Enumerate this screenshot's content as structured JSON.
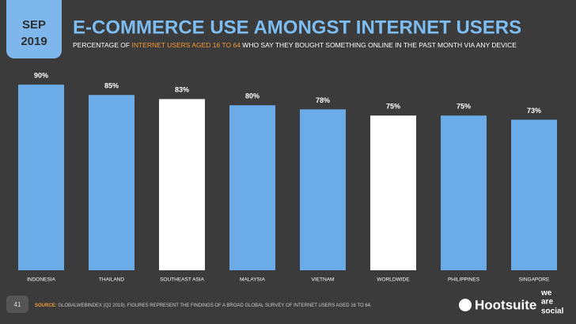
{
  "badge": {
    "month": "SEP",
    "year": "2019"
  },
  "chart_data": {
    "type": "bar",
    "title": "E-COMMERCE USE AMONGST INTERNET USERS",
    "subtitle": [
      "PERCENTAGE OF ",
      "INTERNET USERS AGED 16 TO 64",
      " WHO SAY THEY BOUGHT SOMETHING ONLINE IN THE PAST MONTH VIA ANY DEVICE"
    ],
    "categories": [
      "INDONESIA",
      "THAILAND",
      "SOUTHEAST ASIA",
      "MALAYSIA",
      "VIETNAM",
      "WORLDWIDE",
      "PHILIPPINES",
      "SINGAPORE"
    ],
    "values": [
      90,
      85,
      83,
      80,
      78,
      75,
      75,
      73
    ],
    "value_labels": [
      "90%",
      "85%",
      "83%",
      "80%",
      "78%",
      "75%",
      "75%",
      "73%"
    ],
    "colors": [
      "#6aabe8",
      "#6aabe8",
      "#ffffff",
      "#6aabe8",
      "#6aabe8",
      "#ffffff",
      "#6aabe8",
      "#6aabe8"
    ]
  },
  "footer": {
    "page": "41",
    "source_label": "SOURCE:",
    "source_text": " GLOBALWEBINDEX (Q2 2019). FIGURES REPRESENT THE FINDINGS OF A BROAD GLOBAL SURVEY OF INTERNET USERS AGED 16 TO 64.",
    "hootsuite": "Hootsuite",
    "we": "we",
    "are": "are",
    "social": "social"
  }
}
